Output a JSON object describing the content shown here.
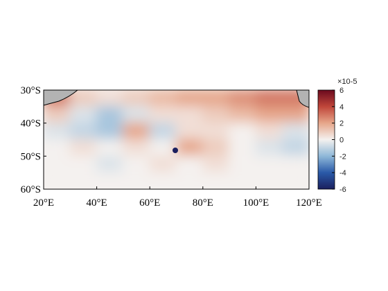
{
  "chart_data": {
    "type": "heatmap",
    "x": [
      25,
      35,
      45,
      55,
      65,
      75,
      85,
      95,
      105,
      115
    ],
    "y": [
      -32.5,
      -37.5,
      -42.5,
      -47.5,
      -52.5,
      -57.5
    ],
    "values": [
      [
        3,
        1,
        0.5,
        1,
        1.5,
        2,
        2,
        2.5,
        3,
        3
      ],
      [
        1,
        -0.5,
        -1.5,
        -0.5,
        0.5,
        0.5,
        1,
        1.5,
        2,
        2
      ],
      [
        -0.5,
        -1,
        -1.5,
        2,
        -1,
        0.5,
        0.5,
        0,
        0.5,
        -0.5
      ],
      [
        0,
        0.5,
        0,
        0.5,
        0,
        2,
        1,
        0,
        -0.5,
        -1
      ],
      [
        0,
        0,
        -0.5,
        0,
        0.5,
        0,
        0.5,
        0,
        0,
        0
      ],
      [
        0,
        0,
        0,
        0,
        0,
        0,
        0,
        0,
        0,
        0
      ]
    ],
    "xlim": [
      20,
      120
    ],
    "ylim": [
      -60,
      -30
    ],
    "xticks": [
      {
        "value": 20,
        "label": "20°E"
      },
      {
        "value": 40,
        "label": "40°E"
      },
      {
        "value": 60,
        "label": "60°E"
      },
      {
        "value": 80,
        "label": "80°E"
      },
      {
        "value": 100,
        "label": "100°E"
      },
      {
        "value": 120,
        "label": "120°E"
      }
    ],
    "yticks": [
      {
        "value": -30,
        "label": "30°S"
      },
      {
        "value": -40,
        "label": "40°S"
      },
      {
        "value": -50,
        "label": "50°S"
      },
      {
        "value": -60,
        "label": "60°S"
      }
    ],
    "clim": [
      -6,
      6
    ],
    "cticks": [
      -6,
      -4,
      -2,
      0,
      2,
      4,
      6
    ],
    "colorbar_exponent": "×10-5"
  }
}
